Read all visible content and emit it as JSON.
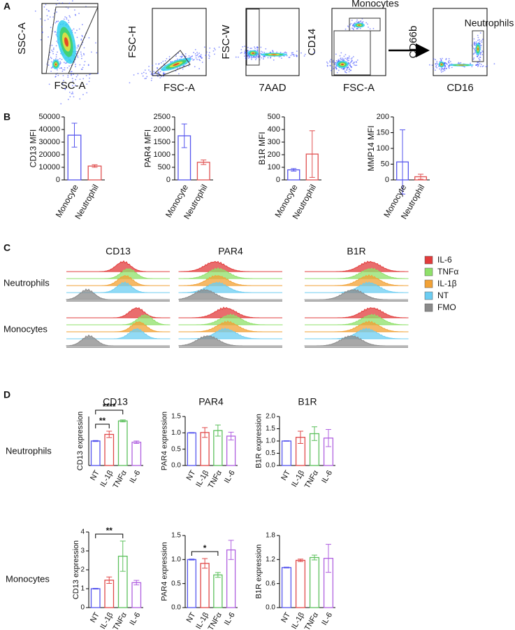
{
  "panel_labels": [
    "A",
    "B",
    "C",
    "D"
  ],
  "flow_plots": [
    {
      "y_label": "SSC-A",
      "x_label": "FSC-A"
    },
    {
      "y_label": "FSC-H",
      "x_label": "FSC-A"
    },
    {
      "y_label": "FSC-W",
      "x_label": "7AAD"
    },
    {
      "y_label": "CD14",
      "x_label": "FSC-A",
      "gate": "Monocytes"
    },
    {
      "y_label": "CD66b",
      "x_label": "CD16",
      "gate": "Neutrophils"
    }
  ],
  "histograms": {
    "columns": [
      "CD13",
      "PAR4",
      "B1R"
    ],
    "rows": [
      "Neutrophils",
      "Monocytes"
    ],
    "legend": [
      {
        "name": "IL-6",
        "color": "#e23c3c"
      },
      {
        "name": "TNFα",
        "color": "#8fe06a"
      },
      {
        "name": "IL-1β",
        "color": "#f2a236"
      },
      {
        "name": "NT",
        "color": "#6ccdf2"
      },
      {
        "name": "FMO",
        "color": "#8a8a8a"
      }
    ]
  },
  "expression": {
    "columns": [
      "CD13",
      "PAR4",
      "B1R"
    ],
    "rows": [
      "Neutrophils",
      "Monocytes"
    ]
  },
  "chart_data": [
    {
      "type": "bar",
      "y_label": "CD13 MFI",
      "categories": [
        "Monocyte",
        "Neutrophil"
      ],
      "colors": [
        "#5555ee",
        "#e05050"
      ],
      "values": [
        35500,
        11000
      ],
      "errors": [
        9500,
        1000
      ],
      "ylim": [
        0,
        50000
      ],
      "yticks": [
        0,
        10000,
        20000,
        30000,
        40000,
        50000
      ]
    },
    {
      "type": "bar",
      "y_label": "PAR4 MFI",
      "categories": [
        "Monocyte",
        "Neutrophil"
      ],
      "colors": [
        "#5555ee",
        "#e05050"
      ],
      "values": [
        1750,
        700
      ],
      "errors": [
        470,
        90
      ],
      "ylim": [
        0,
        2500
      ],
      "yticks": [
        0,
        500,
        1000,
        1500,
        2000,
        2500
      ]
    },
    {
      "type": "bar",
      "y_label": "B1R MFI",
      "categories": [
        "Monocyte",
        "Neutrophil"
      ],
      "colors": [
        "#5555ee",
        "#e05050"
      ],
      "values": [
        80,
        205
      ],
      "errors": [
        10,
        185
      ],
      "ylim": [
        0,
        500
      ],
      "yticks": [
        0,
        100,
        200,
        300,
        400,
        500
      ]
    },
    {
      "type": "bar",
      "y_label": "MMP14 MFI",
      "categories": [
        "Monocyte",
        "Neutrophil"
      ],
      "colors": [
        "#5555ee",
        "#e05050"
      ],
      "values": [
        57,
        10
      ],
      "errors": [
        102,
        8
      ],
      "ylim": [
        0,
        200
      ],
      "yticks": [
        0,
        50,
        100,
        150,
        200
      ]
    },
    {
      "type": "bar",
      "y_label": "CD13 expression",
      "categories": [
        "NT",
        "IL-1β",
        "TNFα",
        "IL-6"
      ],
      "colors": [
        "#5555ee",
        "#e04848",
        "#5cc05c",
        "#b060e0"
      ],
      "values": [
        1.0,
        1.27,
        1.82,
        0.95
      ],
      "errors": [
        0.02,
        0.13,
        0.04,
        0.05
      ],
      "ylim": [
        0,
        2
      ],
      "annotations": [
        {
          "text": "**",
          "between": [
            "NT",
            "IL-1β"
          ]
        },
        {
          "text": "****",
          "between": [
            "NT",
            "TNFα"
          ]
        }
      ]
    },
    {
      "type": "bar",
      "y_label": "PAR4 expression",
      "categories": [
        "NT",
        "IL-1β",
        "TNFα",
        "IL-6"
      ],
      "colors": [
        "#5555ee",
        "#e04848",
        "#5cc05c",
        "#b060e0"
      ],
      "values": [
        1.0,
        1.01,
        1.07,
        0.9
      ],
      "errors": [
        0.01,
        0.15,
        0.17,
        0.12
      ],
      "ylim": [
        0,
        1.5
      ],
      "yticks": [
        {
          "value": 0,
          "label": "0.0"
        },
        0.5,
        {
          "value": 1,
          "label": "1.0"
        },
        1.5
      ]
    },
    {
      "type": "bar",
      "y_label": "B1R expression",
      "categories": [
        "NT",
        "IL-1β",
        "TNFα",
        "IL-6"
      ],
      "colors": [
        "#5555ee",
        "#e04848",
        "#5cc05c",
        "#b060e0"
      ],
      "values": [
        1.0,
        1.15,
        1.3,
        1.12
      ],
      "errors": [
        0.01,
        0.25,
        0.28,
        0.35
      ],
      "ylim": [
        0,
        2
      ],
      "yticks": [
        {
          "value": 0,
          "label": "0.0"
        },
        0.5,
        {
          "value": 1,
          "label": "1.0"
        },
        1.5,
        {
          "value": 2,
          "label": "2.0"
        }
      ]
    },
    {
      "type": "bar",
      "y_label": "CD13 expression",
      "categories": [
        "NT",
        "IL-1β",
        "TNFα",
        "IL-6"
      ],
      "colors": [
        "#5555ee",
        "#e04848",
        "#5cc05c",
        "#b060e0"
      ],
      "values": [
        1.0,
        1.45,
        2.72,
        1.32
      ],
      "errors": [
        0.02,
        0.17,
        0.8,
        0.12
      ],
      "ylim": [
        0,
        4
      ],
      "yticks": [
        0,
        1,
        2,
        3,
        4
      ],
      "annotations": [
        {
          "text": "**",
          "between": [
            "NT",
            "TNFα"
          ]
        }
      ]
    },
    {
      "type": "bar",
      "y_label": "PAR4 expression",
      "categories": [
        "NT",
        "IL-1β",
        "TNFα",
        "IL-6"
      ],
      "colors": [
        "#5555ee",
        "#e04848",
        "#5cc05c",
        "#b060e0"
      ],
      "values": [
        1.0,
        0.92,
        0.68,
        1.2
      ],
      "errors": [
        0.01,
        0.1,
        0.05,
        0.2
      ],
      "ylim": [
        0,
        1.5
      ],
      "yticks": [
        {
          "value": 0,
          "label": "0.0"
        },
        0.5,
        {
          "value": 1,
          "label": "1.0"
        },
        1.5
      ],
      "annotations": [
        {
          "text": "*",
          "between": [
            "NT",
            "TNFα"
          ]
        }
      ]
    },
    {
      "type": "bar",
      "y_label": "B1R expression",
      "categories": [
        "NT",
        "IL-1β",
        "TNFα",
        "IL-6"
      ],
      "colors": [
        "#5555ee",
        "#e04848",
        "#5cc05c",
        "#b060e0"
      ],
      "values": [
        1.0,
        1.18,
        1.25,
        1.23
      ],
      "errors": [
        0.01,
        0.03,
        0.06,
        0.35
      ],
      "ylim": [
        0,
        1.8
      ],
      "yticks": [
        {
          "value": 0,
          "label": "0.0"
        },
        0.6,
        1.2,
        1.8
      ]
    }
  ]
}
